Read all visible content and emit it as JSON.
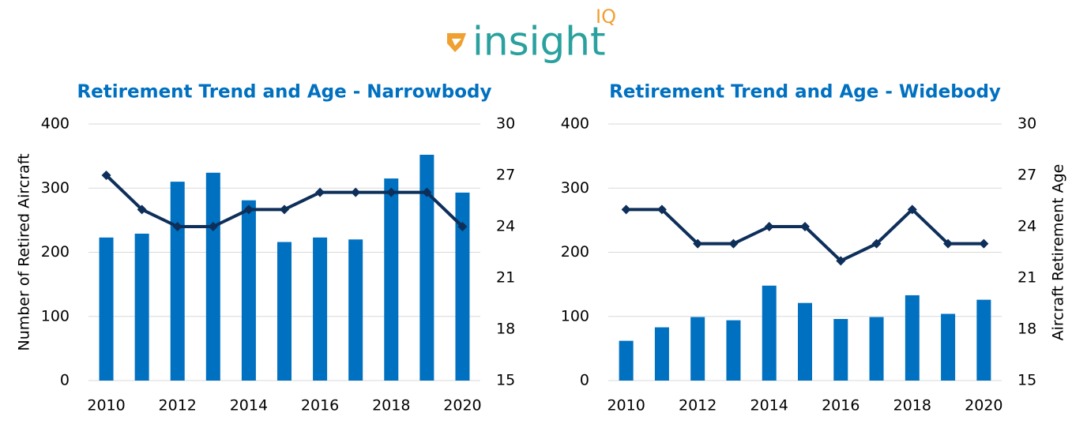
{
  "logo": {
    "text": "insight",
    "superscript": "IQ"
  },
  "chart_data": [
    {
      "type": "combo",
      "title": "Retirement Trend and Age  - Narrowbody",
      "y_label": "Number of Retired Aircraft",
      "categories": [
        "2010",
        null,
        "2012",
        null,
        "2014",
        null,
        "2016",
        null,
        "2018",
        null,
        "2020"
      ],
      "series": [
        {
          "type": "bar",
          "color": "#0070c0",
          "values": [
            223,
            229,
            310,
            324,
            281,
            216,
            223,
            220,
            315,
            352,
            293
          ]
        },
        {
          "type": "line",
          "color": "#0d2f5a",
          "axis": "y2",
          "values": [
            27,
            25,
            24,
            24,
            25,
            25,
            26,
            26,
            26,
            26,
            24
          ]
        }
      ],
      "ylim": [
        0,
        400
      ],
      "yticks": [
        0,
        100,
        200,
        300,
        400
      ],
      "y2lim": [
        15,
        30
      ],
      "y2ticks": [
        15,
        18,
        21,
        24,
        27,
        30
      ],
      "grid": true
    },
    {
      "type": "combo",
      "title": "Retirement Trend and Age - Widebody",
      "y2_label": "Aircraft Retirement Age",
      "categories": [
        "2010",
        null,
        "2012",
        null,
        "2014",
        null,
        "2016",
        null,
        "2018",
        null,
        "2020"
      ],
      "series": [
        {
          "type": "bar",
          "color": "#0070c0",
          "values": [
            62,
            83,
            99,
            94,
            148,
            121,
            96,
            99,
            133,
            104,
            126
          ]
        },
        {
          "type": "line",
          "color": "#0d2f5a",
          "axis": "y2",
          "values": [
            25,
            25,
            23,
            23,
            24,
            24,
            22,
            23,
            25,
            23,
            23
          ]
        }
      ],
      "ylim": [
        0,
        400
      ],
      "yticks": [
        0,
        100,
        200,
        300,
        400
      ],
      "y2lim": [
        15,
        30
      ],
      "y2ticks": [
        15,
        18,
        21,
        24,
        27,
        30
      ],
      "grid": true
    }
  ]
}
